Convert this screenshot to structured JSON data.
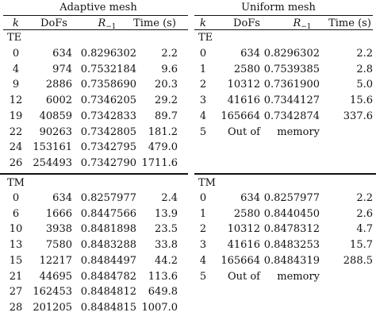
{
  "header": {
    "adaptive_title": "Adaptive mesh",
    "uniform_title": "Uniform mesh",
    "columns": [
      "k",
      "DoFs",
      "R",
      "−1",
      "Time (s)"
    ]
  },
  "sections": [
    {
      "label": "TE",
      "adaptive": [
        [
          "0",
          "634",
          "0.8296302",
          "2.2"
        ],
        [
          "4",
          "974",
          "0.7532184",
          "9.6"
        ],
        [
          "9",
          "2886",
          "0.7358690",
          "20.3"
        ],
        [
          "12",
          "6002",
          "0.7346205",
          "29.2"
        ],
        [
          "19",
          "40859",
          "0.7342833",
          "89.7"
        ],
        [
          "22",
          "90263",
          "0.7342805",
          "181.2"
        ],
        [
          "24",
          "153161",
          "0.7342795",
          "479.0"
        ],
        [
          "26",
          "254493",
          "0.7342790",
          "1711.6"
        ]
      ],
      "uniform": [
        [
          "0",
          "634",
          "0.8296302",
          "2.2"
        ],
        [
          "1",
          "2580",
          "0.7539385",
          "2.8"
        ],
        [
          "2",
          "10312",
          "0.7361900",
          "5.0"
        ],
        [
          "3",
          "41616",
          "0.7344127",
          "15.6"
        ],
        [
          "4",
          "165664",
          "0.7342874",
          "337.6"
        ],
        [
          "5",
          "Out of",
          "memory",
          ""
        ]
      ]
    },
    {
      "label": "TM",
      "adaptive": [
        [
          "0",
          "634",
          "0.8257977",
          "2.4"
        ],
        [
          "6",
          "1666",
          "0.8447566",
          "13.9"
        ],
        [
          "10",
          "3938",
          "0.8481898",
          "23.5"
        ],
        [
          "13",
          "7580",
          "0.8483288",
          "33.8"
        ],
        [
          "15",
          "12217",
          "0.8484497",
          "44.2"
        ],
        [
          "21",
          "44695",
          "0.8484782",
          "113.6"
        ],
        [
          "27",
          "162453",
          "0.8484812",
          "649.8"
        ],
        [
          "28",
          "201205",
          "0.8484815",
          "1007.0"
        ]
      ],
      "uniform": [
        [
          "0",
          "634",
          "0.8257977",
          "2.2"
        ],
        [
          "1",
          "2580",
          "0.8440450",
          "2.6"
        ],
        [
          "2",
          "10312",
          "0.8478312",
          "4.7"
        ],
        [
          "3",
          "41616",
          "0.8483253",
          "15.7"
        ],
        [
          "4",
          "165664",
          "0.8484319",
          "288.5"
        ],
        [
          "5",
          "Out of",
          "memory",
          ""
        ]
      ]
    }
  ]
}
